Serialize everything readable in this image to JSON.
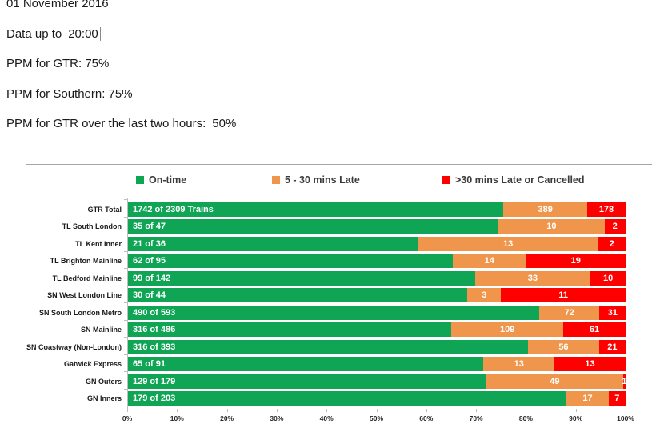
{
  "header": {
    "date": "01 November 2016",
    "data_up_to_prefix": "Data up to",
    "data_up_to_value": "20:00",
    "ppm_gtr": "PPM for GTR: 75%",
    "ppm_southern": "PPM for Southern: 75%",
    "ppm_two_hours_prefix": "PPM for GTR over the last two hours:",
    "ppm_two_hours_value": "50%"
  },
  "chart_data": {
    "type": "bar",
    "orientation": "horizontal",
    "stacked": true,
    "unit": "trains (rendered as % of row total)",
    "xlim": [
      0,
      100
    ],
    "grid": false,
    "legend_position": "top",
    "legend": [
      {
        "label": "On-time",
        "color": "#10A554"
      },
      {
        "label": "5 - 30 mins Late",
        "color": "#F0964C"
      },
      {
        "label": ">30 mins Late or Cancelled",
        "color": "#FE0000"
      }
    ],
    "x_ticks": [
      "0%",
      "10%",
      "20%",
      "30%",
      "40%",
      "50%",
      "60%",
      "70%",
      "80%",
      "90%",
      "100%"
    ],
    "rows": [
      {
        "label": "GTR Total",
        "on_time": 1742,
        "late_5_30": 389,
        "late_30_or_cancelled": 178,
        "total": 2309,
        "on_time_label": "1742 of 2309 Trains"
      },
      {
        "label": "TL South London",
        "on_time": 35,
        "late_5_30": 10,
        "late_30_or_cancelled": 2,
        "total": 47,
        "on_time_label": "35 of 47"
      },
      {
        "label": "TL Kent Inner",
        "on_time": 21,
        "late_5_30": 13,
        "late_30_or_cancelled": 2,
        "total": 36,
        "on_time_label": "21 of 36"
      },
      {
        "label": "TL Brighton Mainline",
        "on_time": 62,
        "late_5_30": 14,
        "late_30_or_cancelled": 19,
        "total": 95,
        "on_time_label": "62 of 95"
      },
      {
        "label": "TL Bedford Mainline",
        "on_time": 99,
        "late_5_30": 33,
        "late_30_or_cancelled": 10,
        "total": 142,
        "on_time_label": "99 of 142"
      },
      {
        "label": "SN West London Line",
        "on_time": 30,
        "late_5_30": 3,
        "late_30_or_cancelled": 11,
        "total": 44,
        "on_time_label": "30 of 44"
      },
      {
        "label": "SN South London Metro",
        "on_time": 490,
        "late_5_30": 72,
        "late_30_or_cancelled": 31,
        "total": 593,
        "on_time_label": "490 of 593"
      },
      {
        "label": "SN Mainline",
        "on_time": 316,
        "late_5_30": 109,
        "late_30_or_cancelled": 61,
        "total": 486,
        "on_time_label": "316 of 486"
      },
      {
        "label": "SN Coastway (Non-London)",
        "on_time": 316,
        "late_5_30": 56,
        "late_30_or_cancelled": 21,
        "total": 393,
        "on_time_label": "316 of 393"
      },
      {
        "label": "Gatwick Express",
        "on_time": 65,
        "late_5_30": 13,
        "late_30_or_cancelled": 13,
        "total": 91,
        "on_time_label": "65 of 91"
      },
      {
        "label": "GN Outers",
        "on_time": 129,
        "late_5_30": 49,
        "late_30_or_cancelled": 1,
        "total": 179,
        "on_time_label": "129 of 179"
      },
      {
        "label": "GN Inners",
        "on_time": 179,
        "late_5_30": 17,
        "late_30_or_cancelled": 7,
        "total": 203,
        "on_time_label": "179 of 203"
      }
    ]
  }
}
